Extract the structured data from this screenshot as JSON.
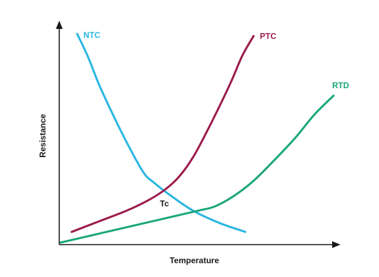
{
  "chart_data": {
    "type": "line",
    "title": "",
    "xlabel": "Temperature",
    "ylabel": "Resistance",
    "xlim": [
      0,
      100
    ],
    "ylim": [
      0,
      100
    ],
    "grid": false,
    "legend": "none",
    "series": [
      {
        "name": "NTC",
        "color": "#29b6e0",
        "values": [
          [
            6,
            98
          ],
          [
            10,
            87
          ],
          [
            14,
            74
          ],
          [
            19,
            60
          ],
          [
            24,
            47
          ],
          [
            30,
            33
          ],
          [
            34,
            28
          ],
          [
            40,
            22
          ],
          [
            48,
            15
          ],
          [
            58,
            9
          ],
          [
            67,
            5
          ]
        ]
      },
      {
        "name": "PTC",
        "color": "#9b1b4c",
        "values": [
          [
            4,
            5
          ],
          [
            14,
            10
          ],
          [
            24,
            15
          ],
          [
            32,
            20
          ],
          [
            38,
            25
          ],
          [
            43,
            31
          ],
          [
            48,
            40
          ],
          [
            53,
            52
          ],
          [
            58,
            65
          ],
          [
            62,
            76
          ],
          [
            66,
            88
          ],
          [
            70,
            97
          ]
        ]
      },
      {
        "name": "RTD",
        "color": "#1aa67a",
        "values": [
          [
            0,
            0
          ],
          [
            10,
            3
          ],
          [
            20,
            6
          ],
          [
            30,
            9
          ],
          [
            40,
            12
          ],
          [
            50,
            15
          ],
          [
            56,
            17
          ],
          [
            63,
            22
          ],
          [
            70,
            29
          ],
          [
            77,
            38
          ],
          [
            85,
            49
          ],
          [
            92,
            60
          ],
          [
            99,
            69
          ]
        ]
      }
    ],
    "annotations": [
      {
        "text": "Tc",
        "x": 36,
        "y": 17
      }
    ]
  }
}
